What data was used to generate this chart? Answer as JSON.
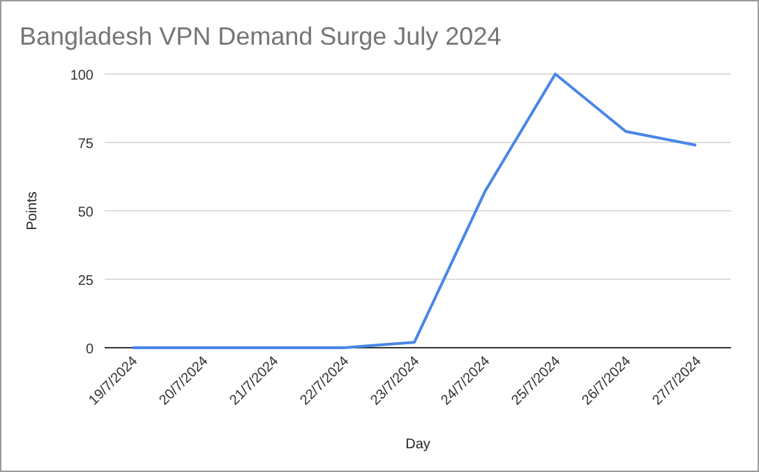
{
  "chart_data": {
    "type": "line",
    "title": "Bangladesh VPN Demand Surge July 2024",
    "xlabel": "Day",
    "ylabel": "Points",
    "categories": [
      "19/7/2024",
      "20/7/2024",
      "21/7/2024",
      "22/7/2024",
      "23/7/2024",
      "24/7/2024",
      "25/7/2024",
      "26/7/2024",
      "27/7/2024"
    ],
    "series": [
      {
        "color": "#4a86e8",
        "values": [
          0,
          0,
          0,
          0,
          2,
          57,
          100,
          79,
          74
        ]
      }
    ],
    "ylim": [
      0,
      100
    ],
    "yticks": [
      0,
      25,
      50,
      75,
      100
    ],
    "grid": "y",
    "marker": "none",
    "line_style": "solid"
  }
}
